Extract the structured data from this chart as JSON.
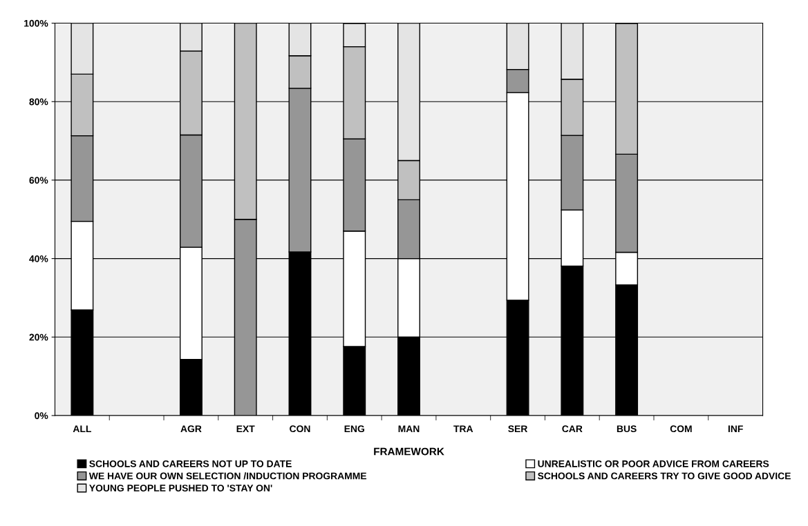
{
  "chart_data": {
    "type": "bar",
    "stacked": true,
    "xlabel": "FRAMEWORK",
    "categories": [
      "ALL",
      null,
      "AGR",
      "EXT",
      "CON",
      "ENG",
      "MAN",
      "TRA",
      "SER",
      "CAR",
      "BUS",
      "COM",
      "INF"
    ],
    "series": [
      {
        "name": "SCHOOLS AND CAREERS NOT UP TO DATE",
        "color": "#000000",
        "values": [
          26.9,
          null,
          14.3,
          0,
          41.7,
          17.6,
          20,
          null,
          29.4,
          38.1,
          33.3,
          null,
          null
        ]
      },
      {
        "name": "UNREALISTIC OR POOR ADVICE FROM CAREERS",
        "color": "#ffffff",
        "values": [
          22.6,
          null,
          28.6,
          0,
          0,
          29.4,
          20,
          null,
          52.9,
          14.3,
          8.3,
          null,
          null
        ]
      },
      {
        "name": "WE HAVE OUR OWN SELECTION /INDUCTION PROGRAMME",
        "color": "#969696",
        "values": [
          21.8,
          null,
          28.6,
          50,
          41.7,
          23.5,
          15,
          null,
          5.9,
          19.0,
          25,
          null,
          null
        ]
      },
      {
        "name": "SCHOOLS AND CAREERS TRY TO GIVE GOOD ADVICE",
        "color": "#c0c0c0",
        "values": [
          15.7,
          null,
          21.4,
          50,
          8.3,
          23.5,
          10,
          null,
          0,
          14.3,
          33.3,
          null,
          null
        ]
      },
      {
        "name": "YOUNG PEOPLE PUSHED TO 'STAY ON'",
        "color": "#e4e4e4",
        "values": [
          13.0,
          null,
          7.1,
          0,
          8.3,
          5.9,
          35,
          null,
          11.8,
          14.3,
          0,
          null,
          null
        ]
      }
    ],
    "ylim": [
      0,
      100
    ],
    "yticks": [
      {
        "value": 0,
        "label": "0%"
      },
      {
        "value": 20,
        "label": "20%"
      },
      {
        "value": 40,
        "label": "40%"
      },
      {
        "value": 60,
        "label": "60%"
      },
      {
        "value": 80,
        "label": "80%"
      },
      {
        "value": 100,
        "label": "100%"
      }
    ],
    "grid": "y",
    "legend": "bottom"
  }
}
